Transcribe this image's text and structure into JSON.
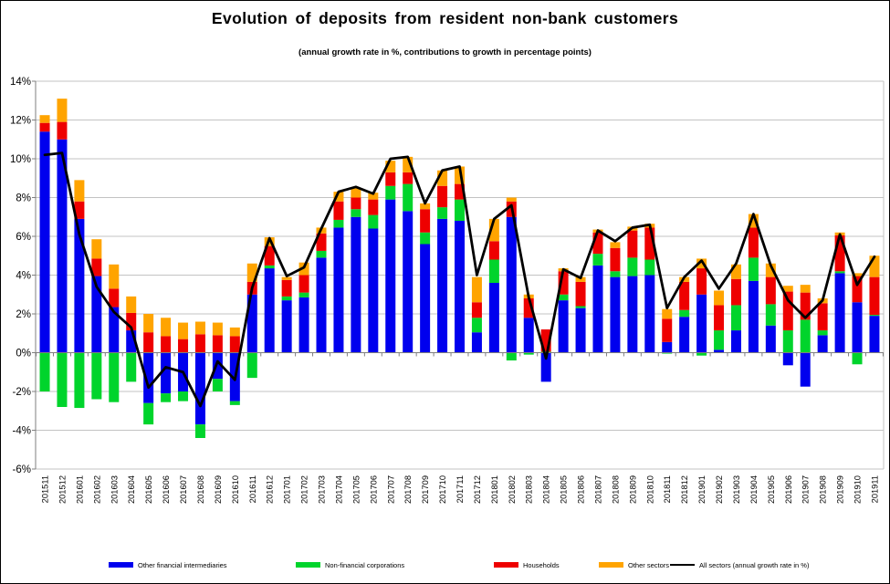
{
  "header": {
    "title": "Evolution of deposits from resident non-bank customers",
    "subtitle": "(annual growth rate in %, contributions to growth in percentage points)"
  },
  "chart_data": {
    "type": "bar",
    "combo": "stacked-bars-with-line-overlay",
    "title": "Evolution of deposits from resident non-bank customers",
    "subtitle": "(annual growth rate in %, contributions to growth in percentage points)",
    "categories": [
      "201511",
      "201512",
      "201601",
      "201602",
      "201603",
      "201604",
      "201605",
      "201606",
      "201607",
      "201608",
      "201609",
      "201610",
      "201611",
      "201612",
      "201701",
      "201702",
      "201703",
      "201704",
      "201705",
      "201706",
      "201707",
      "201708",
      "201709",
      "201710",
      "201711",
      "201712",
      "201801",
      "201802",
      "201803",
      "201804",
      "201805",
      "201806",
      "201807",
      "201808",
      "201809",
      "201810",
      "201811",
      "201812",
      "201901",
      "201902",
      "201903",
      "201904",
      "201905",
      "201906",
      "201907",
      "201908",
      "201909",
      "201910",
      "201911"
    ],
    "series": [
      {
        "name": "Other financial intermediaries",
        "type": "bar",
        "color": "#0000EE",
        "values": [
          11.4,
          11.0,
          6.9,
          3.95,
          2.35,
          1.15,
          -2.6,
          -2.1,
          -2.0,
          -3.7,
          -1.35,
          -2.5,
          3.0,
          4.35,
          2.7,
          2.85,
          4.9,
          6.45,
          7.0,
          6.4,
          7.9,
          7.3,
          5.6,
          6.9,
          6.8,
          1.05,
          3.6,
          7.0,
          1.8,
          -1.5,
          2.7,
          2.3,
          4.5,
          3.9,
          3.95,
          4.0,
          0.55,
          1.85,
          3.0,
          0.15,
          1.15,
          3.7,
          1.4,
          -0.65,
          -1.75,
          0.9,
          4.1,
          2.6,
          1.9
        ]
      },
      {
        "name": "Non-financial corporations",
        "type": "bar",
        "color": "#00D42C",
        "values": [
          -2.0,
          -2.8,
          -2.85,
          -2.4,
          -2.55,
          -1.5,
          -1.1,
          -0.45,
          -0.5,
          -0.7,
          -0.65,
          -0.2,
          -1.3,
          0.15,
          0.2,
          0.25,
          0.35,
          0.4,
          0.4,
          0.7,
          0.7,
          1.4,
          0.6,
          0.6,
          1.1,
          0.75,
          1.2,
          -0.4,
          -0.1,
          0.05,
          0.3,
          0.1,
          0.6,
          0.3,
          0.95,
          0.8,
          -0.05,
          0.35,
          -0.15,
          1.0,
          1.3,
          1.2,
          1.1,
          1.15,
          1.7,
          0.25,
          0.1,
          -0.6,
          0.05
        ]
      },
      {
        "name": "Households",
        "type": "bar",
        "color": "#EE0000",
        "values": [
          0.45,
          0.9,
          0.9,
          0.9,
          0.95,
          0.9,
          1.05,
          0.85,
          0.7,
          0.95,
          0.9,
          0.85,
          0.65,
          1.0,
          0.85,
          0.9,
          0.9,
          0.95,
          0.6,
          0.8,
          0.7,
          0.6,
          1.2,
          1.1,
          0.8,
          0.8,
          0.95,
          0.8,
          1.0,
          1.15,
          1.2,
          1.25,
          1.1,
          1.2,
          1.4,
          1.65,
          1.2,
          1.45,
          1.35,
          1.3,
          1.35,
          1.55,
          1.4,
          2.0,
          1.4,
          1.4,
          1.85,
          1.35,
          1.95
        ]
      },
      {
        "name": "Other sectors",
        "type": "bar",
        "color": "#FFA400",
        "values": [
          0.4,
          1.2,
          1.1,
          1.0,
          1.25,
          0.85,
          0.95,
          0.95,
          0.85,
          0.65,
          0.65,
          0.45,
          0.95,
          0.45,
          0.15,
          0.65,
          0.3,
          0.5,
          0.5,
          0.35,
          0.6,
          0.8,
          0.3,
          0.8,
          0.9,
          1.3,
          1.15,
          0.2,
          0.2,
          0.0,
          0.15,
          0.25,
          0.15,
          0.3,
          0.2,
          0.2,
          0.5,
          0.25,
          0.5,
          0.75,
          0.75,
          0.7,
          0.7,
          0.3,
          0.4,
          0.25,
          0.15,
          0.15,
          1.1
        ]
      },
      {
        "name": "All sectors (annual growth rate in %)",
        "type": "line",
        "color": "#000000",
        "values": [
          10.2,
          10.3,
          6.1,
          3.4,
          2.1,
          1.3,
          -1.8,
          -0.75,
          -1.0,
          -2.75,
          -0.45,
          -1.4,
          3.35,
          5.9,
          3.95,
          4.4,
          6.4,
          8.3,
          8.55,
          8.2,
          10.0,
          10.1,
          7.7,
          9.4,
          9.6,
          4.0,
          6.9,
          7.6,
          2.85,
          -0.3,
          4.3,
          3.85,
          6.3,
          5.75,
          6.45,
          6.6,
          2.3,
          3.9,
          4.75,
          3.3,
          4.6,
          7.15,
          4.5,
          2.7,
          1.8,
          2.7,
          6.1,
          3.5,
          4.95
        ]
      }
    ],
    "ylim": [
      -6,
      14
    ],
    "ytick_step": 2,
    "ytick_labels": [
      "14%",
      "12%",
      "10%",
      "8%",
      "6%",
      "4%",
      "2%",
      "0%",
      "-2%",
      "-4%",
      "-6%"
    ],
    "ytick_format": "percent",
    "grid": true,
    "legend_position": "bottom",
    "colors": {
      "gridline": "#c3c3c3",
      "axis": "#7f7f7f",
      "label_text": "#000000"
    }
  }
}
